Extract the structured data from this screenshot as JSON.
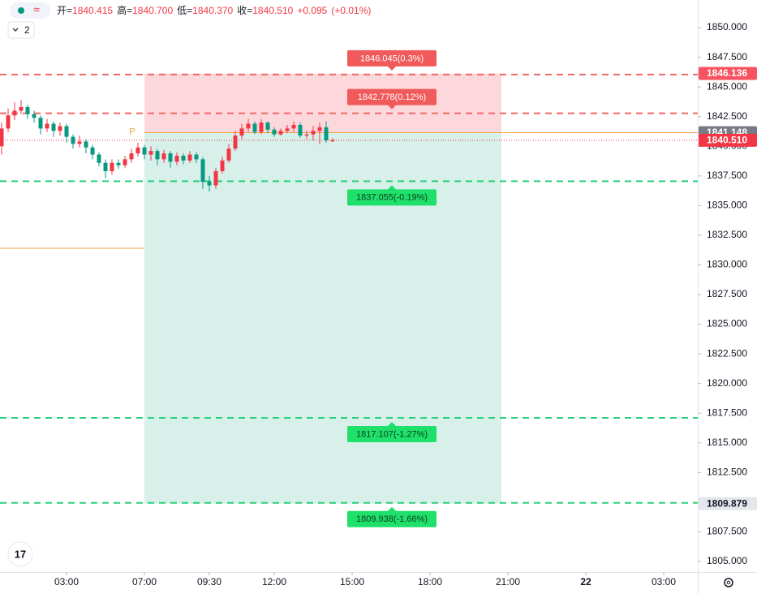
{
  "chart_data": {
    "type": "candlestick",
    "header": {
      "items": [
        {
          "label": "开=",
          "value": "1840.415"
        },
        {
          "label": "高=",
          "value": "1840.700"
        },
        {
          "label": "低=",
          "value": "1840.370"
        },
        {
          "label": "收=",
          "value": "1840.510"
        }
      ],
      "change": "+0.095",
      "change_pct": "(+0.01%)"
    },
    "indicator_count": "2",
    "up_color": "#f23645",
    "down_color": "#089981",
    "candles": {
      "open": [
        1840.0,
        1841.5,
        1842.6,
        1843.0,
        1843.3,
        1842.7,
        1842.4,
        1841.5,
        1841.9,
        1841.3,
        1841.7,
        1840.8,
        1840.2,
        1840.4,
        1839.9,
        1839.3,
        1838.6,
        1837.9,
        1838.6,
        1838.4,
        1838.9,
        1839.4,
        1839.9,
        1839.3,
        1839.6,
        1838.9,
        1839.4,
        1838.7,
        1839.2,
        1838.8,
        1839.3,
        1838.9,
        1837.0,
        1836.7,
        1837.9,
        1838.8,
        1839.8,
        1840.9,
        1841.5,
        1841.9,
        1841.2,
        1842.0,
        1841.4,
        1841.0,
        1841.3,
        1841.5,
        1841.8,
        1840.9,
        1841.0,
        1841.3,
        1841.6,
        1840.415
      ],
      "high": [
        1842.0,
        1843.2,
        1843.7,
        1843.9,
        1843.5,
        1843.0,
        1842.6,
        1842.3,
        1842.1,
        1842.0,
        1841.9,
        1841.0,
        1840.9,
        1840.6,
        1840.1,
        1839.5,
        1838.9,
        1838.9,
        1838.9,
        1839.2,
        1839.8,
        1840.3,
        1840.1,
        1840.0,
        1839.8,
        1839.7,
        1839.6,
        1839.5,
        1839.4,
        1839.6,
        1839.5,
        1839.1,
        1837.5,
        1838.2,
        1839.1,
        1840.2,
        1841.3,
        1841.9,
        1842.3,
        1842.1,
        1842.3,
        1842.1,
        1841.6,
        1841.5,
        1841.8,
        1842.1,
        1842.0,
        1841.3,
        1841.7,
        1842.0,
        1842.1,
        1840.7
      ],
      "low": [
        1839.3,
        1841.2,
        1842.2,
        1842.7,
        1842.3,
        1842.0,
        1841.0,
        1841.2,
        1840.8,
        1840.9,
        1840.3,
        1839.8,
        1839.9,
        1839.4,
        1838.9,
        1838.3,
        1837.3,
        1837.6,
        1838.1,
        1838.2,
        1838.6,
        1839.1,
        1838.9,
        1838.8,
        1838.4,
        1838.6,
        1838.2,
        1838.4,
        1838.5,
        1838.6,
        1838.6,
        1836.4,
        1836.2,
        1836.4,
        1837.7,
        1838.6,
        1839.6,
        1840.6,
        1841.2,
        1841.0,
        1841.0,
        1841.1,
        1840.8,
        1840.9,
        1841.1,
        1841.2,
        1840.7,
        1840.6,
        1840.5,
        1840.2,
        1840.3,
        1840.37
      ],
      "close": [
        1841.5,
        1842.6,
        1843.0,
        1843.3,
        1842.7,
        1842.4,
        1841.5,
        1841.9,
        1841.3,
        1841.7,
        1840.8,
        1840.2,
        1840.4,
        1839.9,
        1839.3,
        1838.6,
        1837.9,
        1838.6,
        1838.4,
        1838.9,
        1839.4,
        1839.9,
        1839.3,
        1839.6,
        1838.9,
        1839.4,
        1838.7,
        1839.2,
        1838.8,
        1839.3,
        1838.9,
        1837.0,
        1836.7,
        1837.9,
        1838.8,
        1839.8,
        1840.9,
        1841.5,
        1841.9,
        1841.2,
        1842.0,
        1841.4,
        1841.0,
        1841.3,
        1841.5,
        1841.8,
        1840.9,
        1841.0,
        1841.3,
        1841.6,
        1840.5,
        1840.51
      ]
    },
    "xlim": [
      -0.25,
      107.25
    ],
    "xticks": [
      {
        "value": 10,
        "label": "03:00"
      },
      {
        "value": 22,
        "label": "07:00"
      },
      {
        "value": 32,
        "label": "09:30"
      },
      {
        "value": 42,
        "label": "12:00"
      },
      {
        "value": 54,
        "label": "15:00"
      },
      {
        "value": 66,
        "label": "18:00"
      },
      {
        "value": 78,
        "label": "21:00"
      },
      {
        "value": 90,
        "label": "22"
      },
      {
        "value": 102,
        "label": "03:00"
      }
    ],
    "ylim": [
      1804.11,
      1852.33
    ],
    "yticks": [
      {
        "value": 1805,
        "label": "1805.000"
      },
      {
        "value": 1807.5,
        "label": "1807.500"
      },
      {
        "value": 1810,
        "label": "1810.000"
      },
      {
        "value": 1812.5,
        "label": "1812.500"
      },
      {
        "value": 1815,
        "label": "1815.000"
      },
      {
        "value": 1817.5,
        "label": "1817.500"
      },
      {
        "value": 1820,
        "label": "1820.000"
      },
      {
        "value": 1822.5,
        "label": "1822.500"
      },
      {
        "value": 1825,
        "label": "1825.000"
      },
      {
        "value": 1827.5,
        "label": "1827.500"
      },
      {
        "value": 1830,
        "label": "1830.000"
      },
      {
        "value": 1832.5,
        "label": "1832.500"
      },
      {
        "value": 1835,
        "label": "1835.000"
      },
      {
        "value": 1837.5,
        "label": "1837.500"
      },
      {
        "value": 1840,
        "label": "1840.000"
      },
      {
        "value": 1842.5,
        "label": "1842.500"
      },
      {
        "value": 1845,
        "label": "1845.000"
      },
      {
        "value": 1847.5,
        "label": "1847.500"
      },
      {
        "value": 1850,
        "label": "1850.000"
      }
    ],
    "session_line": {
      "value": 1831.4,
      "end": 22,
      "color": "#f0a040"
    },
    "position": {
      "start": 22,
      "end": 77,
      "entry": 1841.148,
      "stop": 1846.136,
      "target": 1809.879,
      "stop_fill": "#fcd8dc",
      "target_fill": "#d8f0ea",
      "entry_color": "#f0a040",
      "marker": "P"
    },
    "current_price": {
      "value": 1840.51,
      "color": "#f23645"
    },
    "levels": [
      {
        "value": 1846.045,
        "label": "1846.045(0.3%)",
        "color": "#f05a5a",
        "line_color": "#f06868"
      },
      {
        "value": 1842.778,
        "label": "1842.778(0.12%)",
        "color": "#f05a5a",
        "line_color": "#f06868"
      },
      {
        "value": 1837.055,
        "label": "1837.055(-0.19%)",
        "color": "#1ee06a",
        "line_color": "#2ad07a"
      },
      {
        "value": 1817.107,
        "label": "1817.107(-1.27%)",
        "color": "#1ee06a",
        "line_color": "#2ad07a"
      },
      {
        "value": 1809.938,
        "label": "1809.938(-1.66%)",
        "color": "#1ee06a",
        "line_color": "#2ad07a"
      }
    ],
    "price_badges": [
      {
        "value": 1846.136,
        "label": "1846.136",
        "color": "#f7525f",
        "text_color": "#ffffff"
      },
      {
        "value": 1841.148,
        "label": "1841.148",
        "color": "#787b86",
        "text_color": "#ffffff"
      },
      {
        "value": 1840.51,
        "label": "1840.510",
        "color": "#f23645",
        "text_color": "#ffffff"
      },
      {
        "value": 1809.879,
        "label": "1809.879",
        "color": "#e4e6ec",
        "text_color": "#131722"
      }
    ]
  }
}
